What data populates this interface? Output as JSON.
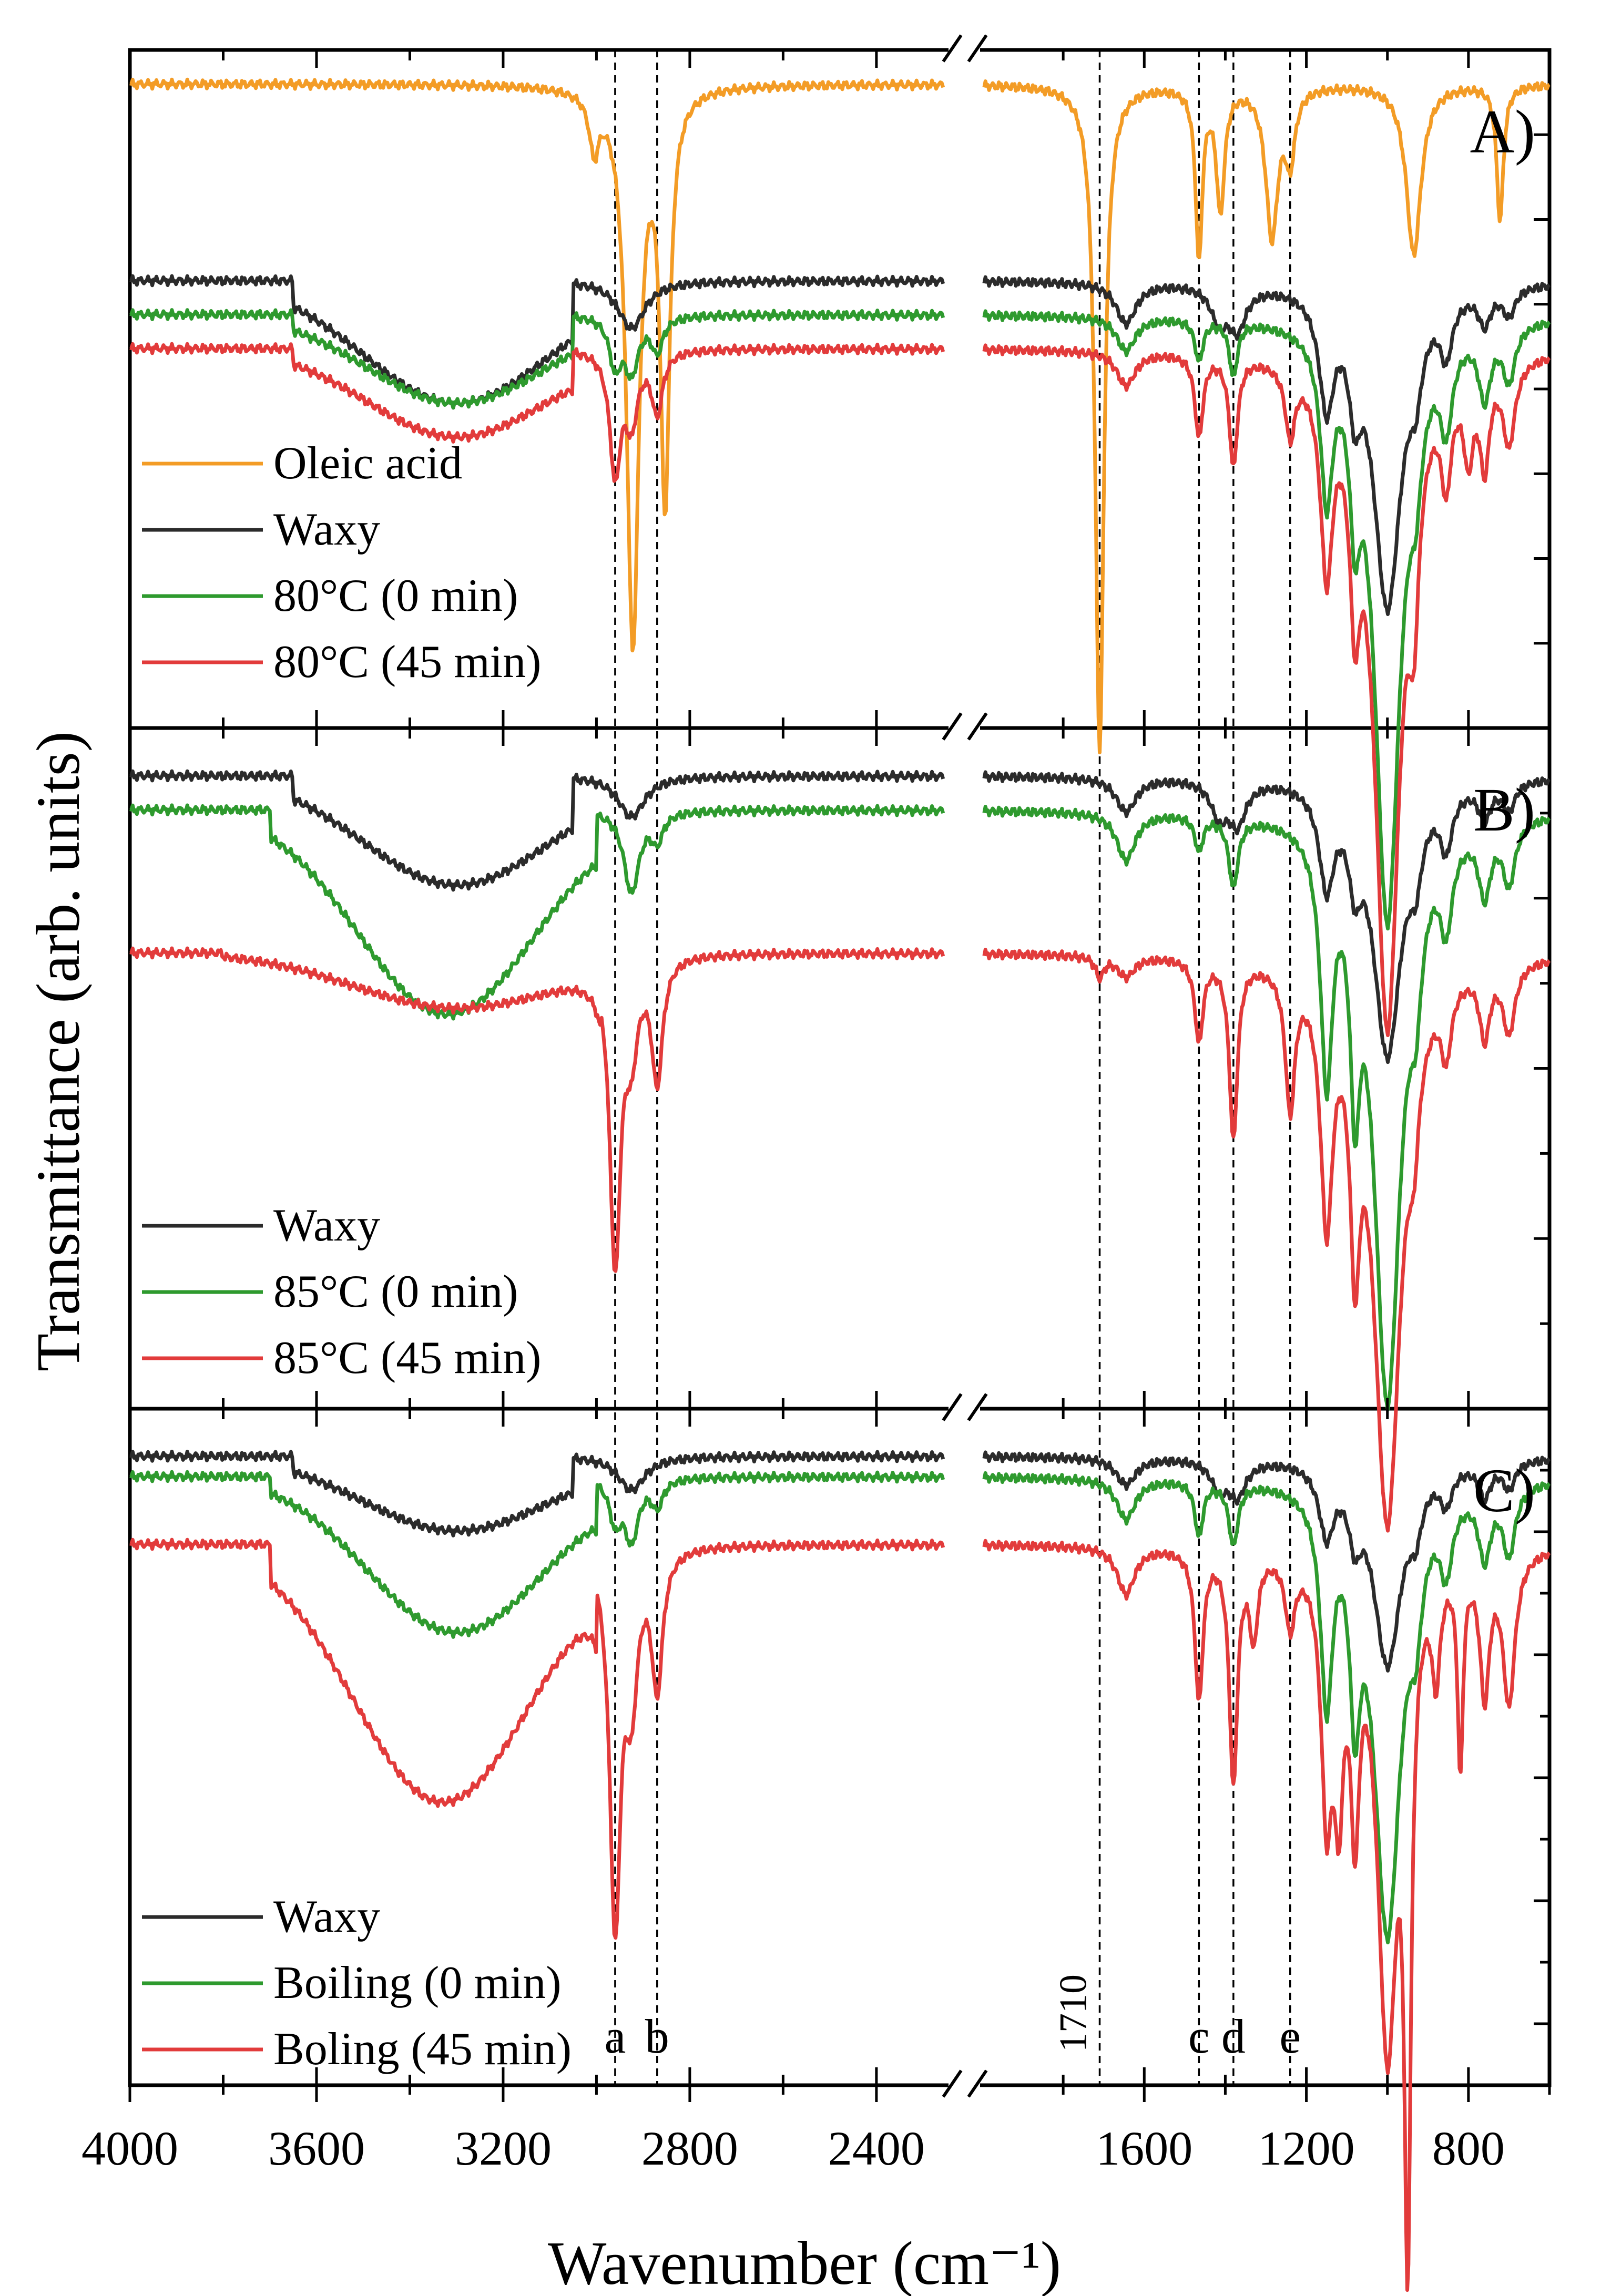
{
  "figure": {
    "xlabel": "Wavenumber (cm⁻¹)",
    "ylabel": "Transmittance (arb. units)",
    "x_ticks_left": [
      4000,
      3600,
      3200,
      2800,
      2400
    ],
    "x_ticks_right": [
      1600,
      1200,
      800
    ],
    "x_left_range": [
      4000,
      2250
    ],
    "x_right_range": [
      2000,
      600
    ],
    "marker_lines": [
      {
        "label": "a",
        "x": 2960
      },
      {
        "label": "b",
        "x": 2870
      },
      {
        "label": "1710",
        "x": 1710
      },
      {
        "label": "c",
        "x": 1465
      },
      {
        "label": "d",
        "x": 1380
      },
      {
        "label": "e",
        "x": 1240
      }
    ],
    "colors": {
      "Oleic acid": "#F39C26",
      "Waxy": "#2B2B2B",
      "Green": "#2E9A2E",
      "Red": "#E23B3B"
    }
  },
  "chart_data": [
    {
      "type": "line",
      "panel": "A)",
      "title": "",
      "xlabel": "Wavenumber (cm⁻¹)",
      "ylabel": "Transmittance (arb. units)",
      "series": [
        {
          "name": "Oleic acid",
          "color": "#F39C26",
          "baseline": 0.95,
          "broad": [],
          "bands": [
            [
              3005,
              0.08,
              12
            ],
            [
              2922,
              0.82,
              16
            ],
            [
              2853,
              0.6,
              12
            ],
            [
              1710,
              0.98,
              13
            ],
            [
              1465,
              0.25,
              10
            ],
            [
              1412,
              0.18,
              12
            ],
            [
              1285,
              0.22,
              18
            ],
            [
              1240,
              0.1,
              14
            ],
            [
              935,
              0.25,
              22
            ],
            [
              722,
              0.2,
              10
            ]
          ]
        },
        {
          "name": "Waxy",
          "color": "#2B2B2B",
          "baseline": 0.66,
          "broad": [
            [
              3300,
              0.18,
              200,
              3650,
              3050
            ]
          ],
          "bands": [
            [
              2925,
              0.07,
              35
            ],
            [
              1645,
              0.06,
              30
            ],
            [
              1415,
              0.05,
              25
            ],
            [
              1370,
              0.06,
              25
            ],
            [
              1150,
              0.16,
              22
            ],
            [
              1080,
              0.12,
              18
            ],
            [
              1000,
              0.47,
              42
            ],
            [
              930,
              0.08,
              18
            ],
            [
              855,
              0.08,
              18
            ],
            [
              760,
              0.05,
              18
            ],
            [
              700,
              0.04,
              18
            ]
          ]
        },
        {
          "name": "80°C (0 min)",
          "color": "#2E9A2E",
          "baseline": 0.61,
          "broad": [
            [
              3300,
              0.13,
              190,
              3650,
              3050
            ]
          ],
          "bands": [
            [
              2960,
              0.07,
              15
            ],
            [
              2925,
              0.08,
              18
            ],
            [
              2870,
              0.05,
              15
            ],
            [
              1645,
              0.05,
              28
            ],
            [
              1465,
              0.06,
              12
            ],
            [
              1380,
              0.08,
              12
            ],
            [
              1150,
              0.23,
              18
            ],
            [
              1080,
              0.2,
              15
            ],
            [
              1000,
              0.88,
              38
            ],
            [
              930,
              0.12,
              18
            ],
            [
              855,
              0.12,
              18
            ],
            [
              760,
              0.1,
              18
            ],
            [
              700,
              0.08,
              18
            ]
          ]
        },
        {
          "name": "80°C (45 min)",
          "color": "#E23B3B",
          "baseline": 0.56,
          "broad": [
            [
              3300,
              0.13,
              190,
              3650,
              3050
            ]
          ],
          "bands": [
            [
              2960,
              0.18,
              14
            ],
            [
              2925,
              0.1,
              16
            ],
            [
              2870,
              0.09,
              14
            ],
            [
              1645,
              0.05,
              28
            ],
            [
              1465,
              0.12,
              12
            ],
            [
              1380,
              0.16,
              12
            ],
            [
              1240,
              0.1,
              14
            ],
            [
              1150,
              0.28,
              18
            ],
            [
              1080,
              0.26,
              15
            ],
            [
              1000,
              0.98,
              38
            ],
            [
              935,
              0.22,
              15
            ],
            [
              855,
              0.14,
              15
            ],
            [
              800,
              0.12,
              14
            ],
            [
              760,
              0.14,
              14
            ],
            [
              700,
              0.12,
              18
            ]
          ]
        }
      ]
    },
    {
      "type": "line",
      "panel": "B)",
      "title": "",
      "xlabel": "Wavenumber (cm⁻¹)",
      "ylabel": "Transmittance (arb. units)",
      "series": [
        {
          "name": "Waxy",
          "color": "#2B2B2B",
          "baseline": 0.93,
          "broad": [
            [
              3300,
              0.16,
              200,
              3650,
              3050
            ]
          ],
          "bands": [
            [
              2925,
              0.06,
              35
            ],
            [
              1645,
              0.05,
              30
            ],
            [
              1415,
              0.05,
              25
            ],
            [
              1370,
              0.06,
              25
            ],
            [
              1150,
              0.14,
              22
            ],
            [
              1080,
              0.1,
              18
            ],
            [
              1000,
              0.4,
              42
            ],
            [
              930,
              0.08,
              18
            ],
            [
              855,
              0.08,
              18
            ],
            [
              760,
              0.05,
              18
            ],
            [
              700,
              0.04,
              18
            ]
          ]
        },
        {
          "name": "85°C (0 min)",
          "color": "#2E9A2E",
          "baseline": 0.88,
          "broad": [
            [
              3320,
              0.3,
              190,
              3700,
              3000
            ]
          ],
          "bands": [
            [
              2925,
              0.12,
              20
            ],
            [
              2870,
              0.04,
              15
            ],
            [
              1645,
              0.07,
              28
            ],
            [
              1465,
              0.05,
              12
            ],
            [
              1380,
              0.1,
              14
            ],
            [
              1150,
              0.35,
              18
            ],
            [
              1080,
              0.3,
              14
            ],
            [
              1000,
              0.85,
              40
            ],
            [
              930,
              0.14,
              18
            ],
            [
              855,
              0.12,
              18
            ],
            [
              760,
              0.1,
              18
            ],
            [
              700,
              0.09,
              18
            ]
          ]
        },
        {
          "name": "85°C (45 min)",
          "color": "#E23B3B",
          "baseline": 0.67,
          "broad": [
            [
              3300,
              0.08,
              220,
              3800,
              2990
            ]
          ],
          "bands": [
            [
              2960,
              0.45,
              14
            ],
            [
              2925,
              0.12,
              16
            ],
            [
              2870,
              0.18,
              14
            ],
            [
              1710,
              0.03,
              12
            ],
            [
              1645,
              0.03,
              26
            ],
            [
              1465,
              0.12,
              12
            ],
            [
              1380,
              0.26,
              12
            ],
            [
              1240,
              0.2,
              14
            ],
            [
              1150,
              0.35,
              18
            ],
            [
              1080,
              0.33,
              14
            ],
            [
              1000,
              0.82,
              40
            ],
            [
              935,
              0.12,
              15
            ],
            [
              855,
              0.1,
              15
            ],
            [
              760,
              0.1,
              15
            ],
            [
              700,
              0.1,
              18
            ]
          ]
        }
      ]
    },
    {
      "type": "line",
      "panel": "C)",
      "title": "",
      "xlabel": "Wavenumber (cm⁻¹)",
      "ylabel": "Transmittance (arb. units)",
      "series": [
        {
          "name": "Waxy",
          "color": "#2B2B2B",
          "baseline": 0.93,
          "broad": [
            [
              3300,
              0.11,
              200,
              3650,
              3050
            ]
          ],
          "bands": [
            [
              2925,
              0.05,
              35
            ],
            [
              1645,
              0.04,
              30
            ],
            [
              1415,
              0.04,
              25
            ],
            [
              1370,
              0.05,
              25
            ],
            [
              1150,
              0.1,
              22
            ],
            [
              1080,
              0.08,
              18
            ],
            [
              1000,
              0.3,
              42
            ],
            [
              930,
              0.06,
              18
            ],
            [
              855,
              0.05,
              18
            ],
            [
              760,
              0.05,
              18
            ],
            [
              700,
              0.04,
              18
            ]
          ]
        },
        {
          "name": "Boiling (0 min)",
          "color": "#2E9A2E",
          "baseline": 0.9,
          "broad": [
            [
              3300,
              0.23,
              190,
              3700,
              3000
            ]
          ],
          "bands": [
            [
              2960,
              0.06,
              15
            ],
            [
              2925,
              0.09,
              18
            ],
            [
              2870,
              0.04,
              15
            ],
            [
              1645,
              0.06,
              28
            ],
            [
              1465,
              0.08,
              12
            ],
            [
              1380,
              0.09,
              14
            ],
            [
              1150,
              0.3,
              18
            ],
            [
              1080,
              0.26,
              15
            ],
            [
              1000,
              0.66,
              40
            ],
            [
              930,
              0.12,
              18
            ],
            [
              855,
              0.1,
              18
            ],
            [
              760,
              0.1,
              18
            ],
            [
              700,
              0.1,
              18
            ]
          ]
        },
        {
          "name": "Boling (45 min)",
          "color": "#E23B3B",
          "baseline": 0.8,
          "broad": [
            [
              3330,
              0.38,
              190,
              3700,
              3000
            ]
          ],
          "bands": [
            [
              2960,
              0.55,
              14
            ],
            [
              2925,
              0.2,
              16
            ],
            [
              2870,
              0.2,
              14
            ],
            [
              1645,
              0.07,
              26
            ],
            [
              1465,
              0.22,
              12
            ],
            [
              1380,
              0.34,
              12
            ],
            [
              1330,
              0.12,
              12
            ],
            [
              1240,
              0.1,
              14
            ],
            [
              1150,
              0.35,
              16
            ],
            [
              1120,
              0.3,
              14
            ],
            [
              1080,
              0.33,
              13
            ],
            [
              1000,
              0.72,
              30
            ],
            [
              950,
              0.9,
              10
            ],
            [
              880,
              0.15,
              12
            ],
            [
              820,
              0.3,
              8
            ],
            [
              760,
              0.2,
              14
            ],
            [
              700,
              0.22,
              18
            ]
          ]
        }
      ]
    }
  ],
  "panels_text": [
    {
      "label": "A)",
      "legend": [
        "Oleic acid",
        "Waxy",
        "80°C (0 min)",
        "80°C (45 min)"
      ]
    },
    {
      "label": "B)",
      "legend": [
        "Waxy",
        "85°C (0 min)",
        "85°C (45 min)"
      ]
    },
    {
      "label": "C)",
      "legend": [
        "Waxy",
        "Boiling (0 min)",
        "Boling (45 min)"
      ]
    }
  ]
}
